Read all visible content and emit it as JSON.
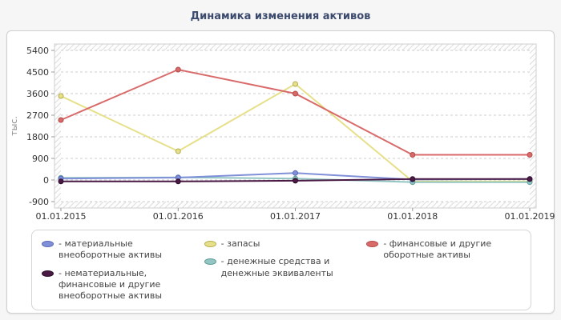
{
  "title": "Динамика изменения активов",
  "chart_data": {
    "type": "line",
    "x": [
      "01.01.2015",
      "01.01.2016",
      "01.01.2017",
      "01.01.2018",
      "01.01.2019"
    ],
    "ylabel": "тыс.",
    "ylim": [
      -900,
      5400
    ],
    "yticks": [
      5400,
      4500,
      3600,
      2700,
      1800,
      900,
      0,
      -900
    ],
    "grid": true,
    "legend_position": "bottom",
    "series": [
      {
        "name": "материальные внеоборотные активы",
        "values": [
          60,
          100,
          290,
          20,
          40
        ],
        "color": "#8090d8",
        "border": "#5866b8"
      },
      {
        "name": "нематериальные, финансовые и другие внеоборотные активы",
        "values": [
          -60,
          -60,
          -30,
          40,
          40
        ],
        "color": "#4a1a45",
        "border": "#2e0f2b"
      },
      {
        "name": "запасы",
        "values": [
          3500,
          1200,
          4000,
          -60,
          -60
        ],
        "color": "#e6e08a",
        "border": "#b5ad4e"
      },
      {
        "name": "денежные средства и денежные эквиваленты",
        "values": [
          90,
          110,
          60,
          -90,
          -90
        ],
        "color": "#93c6c3",
        "border": "#5d9b98"
      },
      {
        "name": "финансовые и другие оборотные активы",
        "values": [
          2500,
          4600,
          3600,
          1050,
          1050
        ],
        "color": "#d96a6a",
        "border": "#b34a4a"
      }
    ]
  },
  "legend": {
    "prefix": "- ",
    "columns": [
      [
        0,
        1
      ],
      [
        2,
        3
      ],
      [
        4
      ]
    ]
  }
}
